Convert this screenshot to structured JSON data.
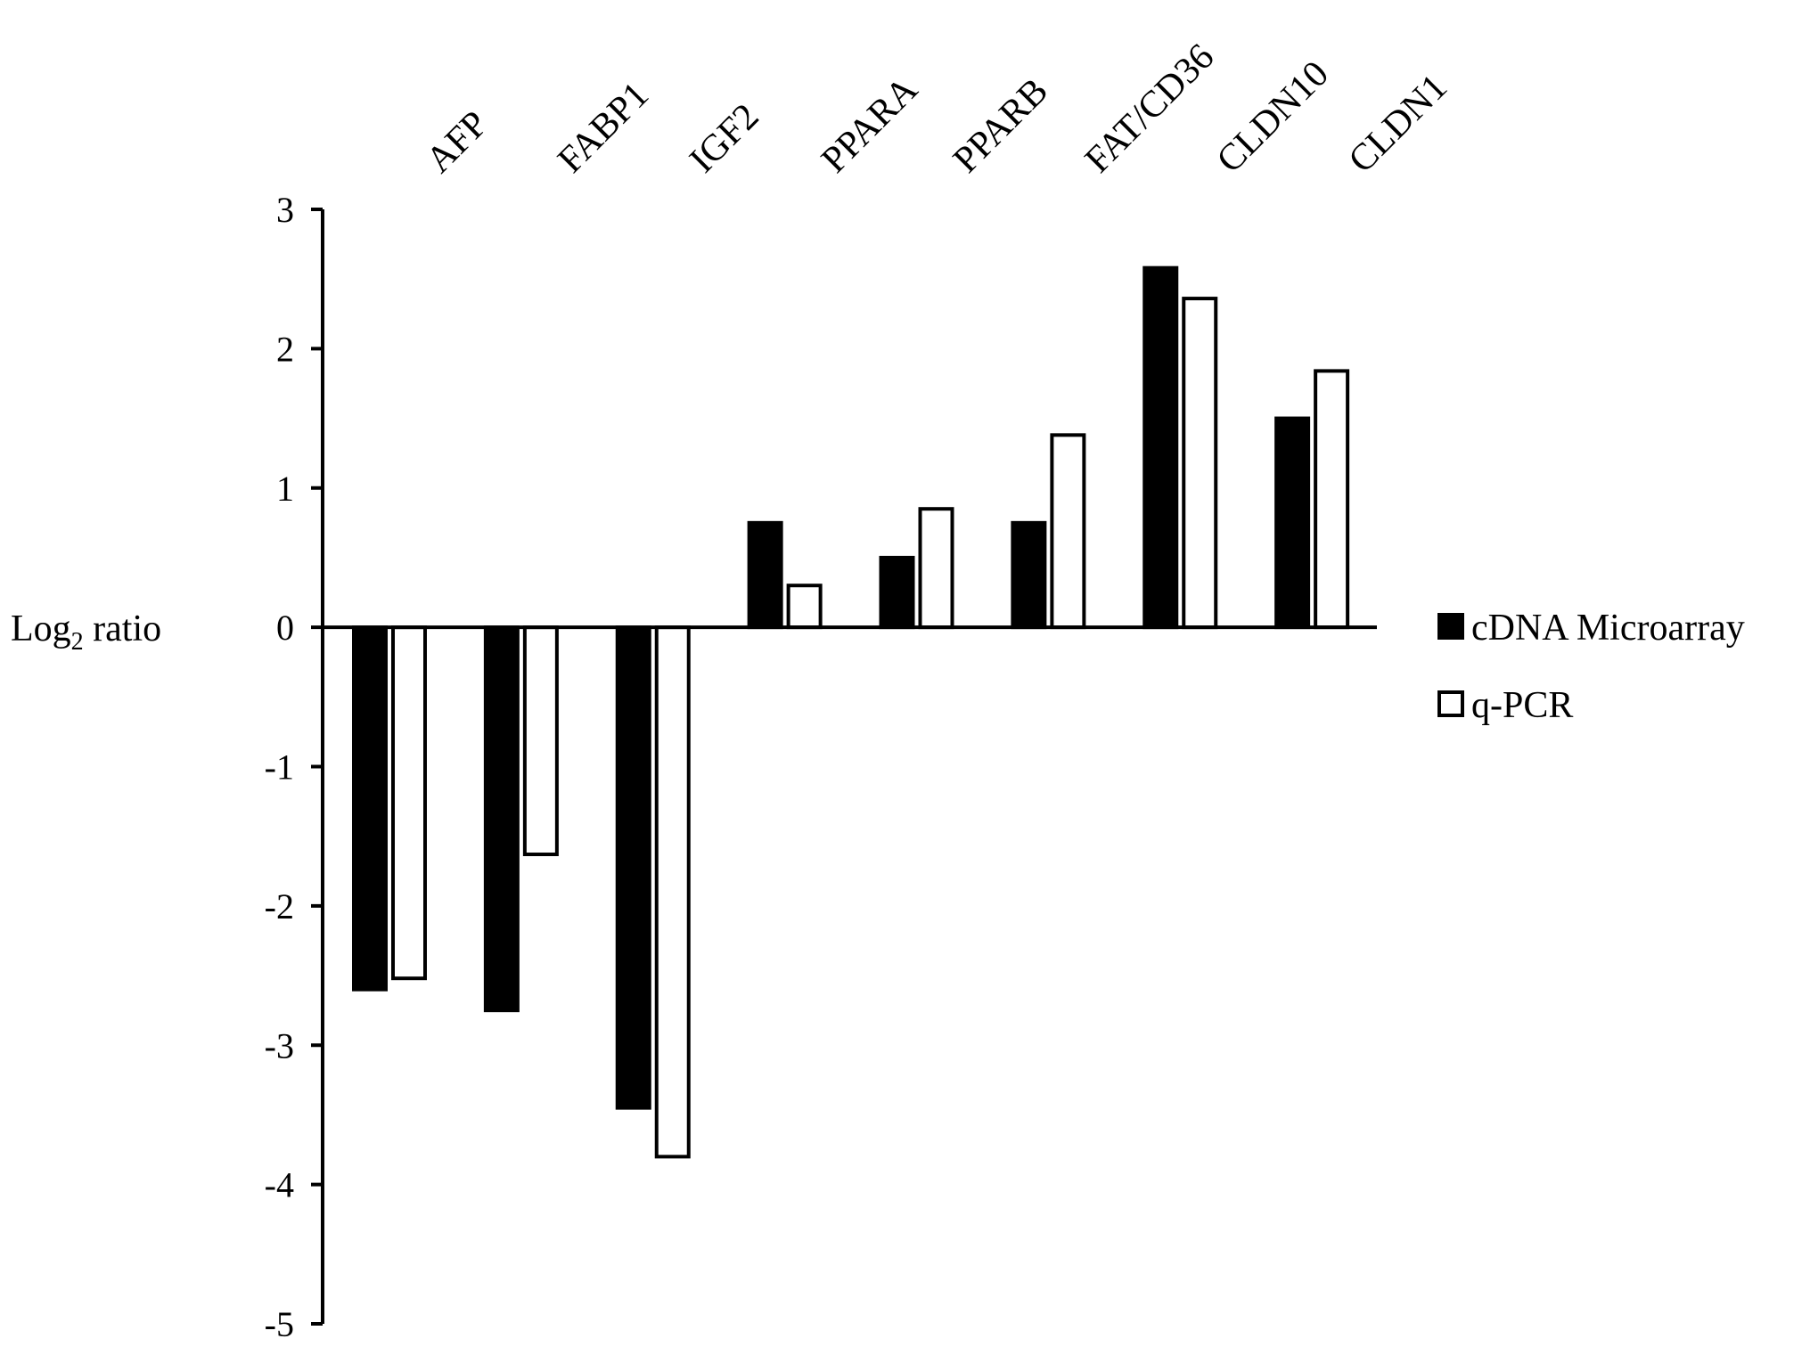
{
  "chart_data": {
    "type": "bar",
    "title": "",
    "xlabel": "",
    "ylabel": {
      "prefix": "Log",
      "subscript": "2",
      "suffix": " ratio"
    },
    "ylim": [
      -5,
      3
    ],
    "yticks": [
      3,
      2,
      1,
      0,
      -1,
      -2,
      -3,
      -4,
      -5
    ],
    "categories": [
      "AFP",
      "FABP1",
      "IGF2",
      "PPARA",
      "PPARB",
      "FAT/CD36",
      "CLDN10",
      "CLDN1"
    ],
    "series": [
      {
        "name": "cDNA Microarray",
        "fill": "#000000",
        "values": [
          -2.6,
          -2.75,
          -3.45,
          0.75,
          0.5,
          0.75,
          2.58,
          1.5
        ]
      },
      {
        "name": "q-PCR",
        "fill": "#ffffff",
        "values": [
          -2.52,
          -1.63,
          -3.8,
          0.3,
          0.85,
          1.38,
          2.36,
          1.84
        ]
      }
    ],
    "grid": false,
    "legend_position": "right",
    "category_label_position": "top-rotated"
  }
}
